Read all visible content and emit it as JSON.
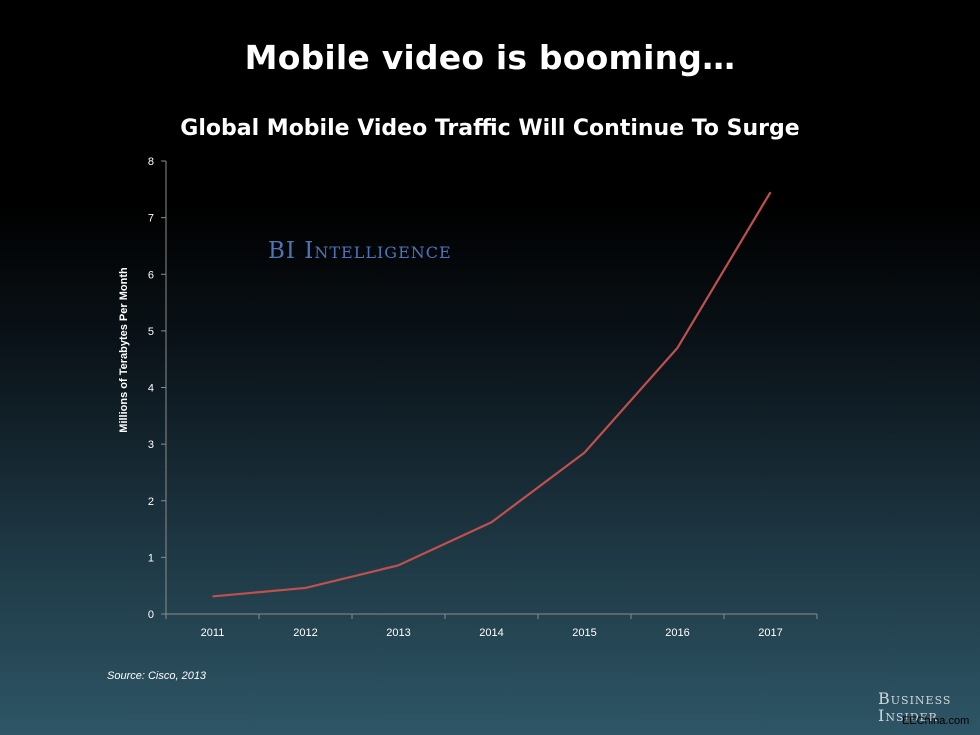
{
  "slide_title": "Mobile video is booming…",
  "watermark": "BI Intelligence",
  "source": "Source: Cisco, 2013",
  "logo": {
    "line1": "Business",
    "line2": "Insider"
  },
  "credit": "EEChina.com",
  "colors": {
    "line": "#c0504d",
    "axis": "#8c8c8c",
    "text": "#ffffff",
    "watermark": "#4f73b7"
  },
  "chart_data": {
    "type": "line",
    "title": "Global Mobile Video Traffic Will Continue To Surge",
    "xlabel": "",
    "ylabel": "Millions of Terabytes Per Month",
    "categories": [
      "2011",
      "2012",
      "2013",
      "2014",
      "2015",
      "2016",
      "2017"
    ],
    "series": [
      {
        "values": [
          0.31,
          0.46,
          0.86,
          1.62,
          2.85,
          4.7,
          7.45
        ]
      }
    ],
    "ylim": [
      0,
      8
    ],
    "yticks": [
      "0",
      "1",
      "2",
      "3",
      "4",
      "5",
      "6",
      "7",
      "8"
    ],
    "grid": false,
    "legend": "none"
  }
}
